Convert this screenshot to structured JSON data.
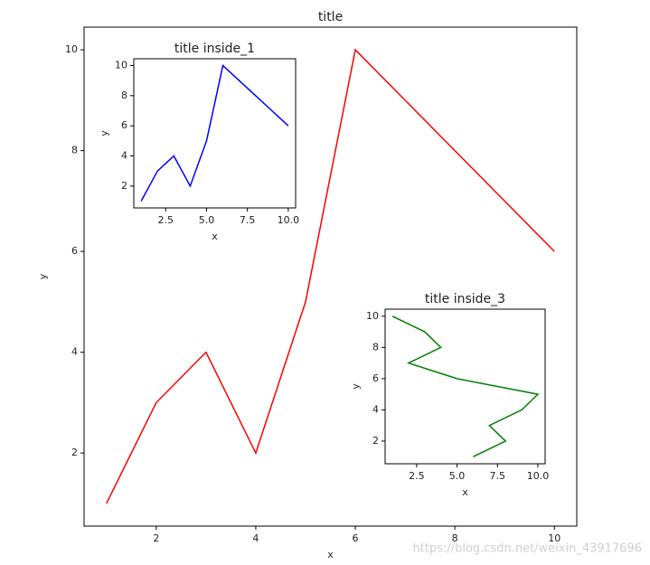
{
  "chart_data": [
    {
      "type": "line",
      "title": "title",
      "xlabel": "x",
      "ylabel": "y",
      "x": [
        1,
        2,
        3,
        4,
        5,
        6,
        7,
        8,
        9,
        10
      ],
      "series": [
        {
          "color": "#ff0000",
          "values": [
            1,
            3,
            4,
            2,
            5,
            10,
            9,
            8,
            7,
            6
          ]
        }
      ],
      "xlim": [
        0.55,
        10.45
      ],
      "ylim": [
        0.55,
        10.45
      ],
      "xticks": [
        2,
        4,
        6,
        8,
        10
      ],
      "yticks": [
        2,
        4,
        6,
        8,
        10
      ]
    },
    {
      "type": "line",
      "title": "title inside_1",
      "xlabel": "x",
      "ylabel": "y",
      "x": [
        1,
        2,
        3,
        4,
        5,
        6,
        7,
        8,
        9,
        10
      ],
      "series": [
        {
          "color": "#0000ff",
          "values": [
            1,
            3,
            4,
            2,
            5,
            10,
            9,
            8,
            7,
            6
          ]
        }
      ],
      "xlim": [
        0.55,
        10.45
      ],
      "ylim": [
        0.55,
        10.45
      ],
      "xticks": [
        2.5,
        {
          "value": 5,
          "label": "5.0"
        },
        7.5,
        {
          "value": 10,
          "label": "10.0"
        }
      ],
      "yticks": [
        2,
        4,
        6,
        8,
        10
      ]
    },
    {
      "type": "line",
      "title": "title inside_3",
      "xlabel": "x",
      "ylabel": "y",
      "x": [
        6,
        8,
        7,
        9,
        10,
        5,
        2,
        4,
        3,
        1
      ],
      "series": [
        {
          "color": "#008000",
          "values": [
            1,
            2,
            3,
            4,
            5,
            6,
            7,
            8,
            9,
            10
          ]
        }
      ],
      "xlim": [
        0.55,
        10.45
      ],
      "ylim": [
        0.55,
        10.45
      ],
      "xticks": [
        2.5,
        {
          "value": 5,
          "label": "5.0"
        },
        7.5,
        {
          "value": 10,
          "label": "10.0"
        }
      ],
      "yticks": [
        2,
        4,
        6,
        8,
        10
      ]
    }
  ],
  "watermark": "https://blog.csdn.net/weixin_43917696"
}
